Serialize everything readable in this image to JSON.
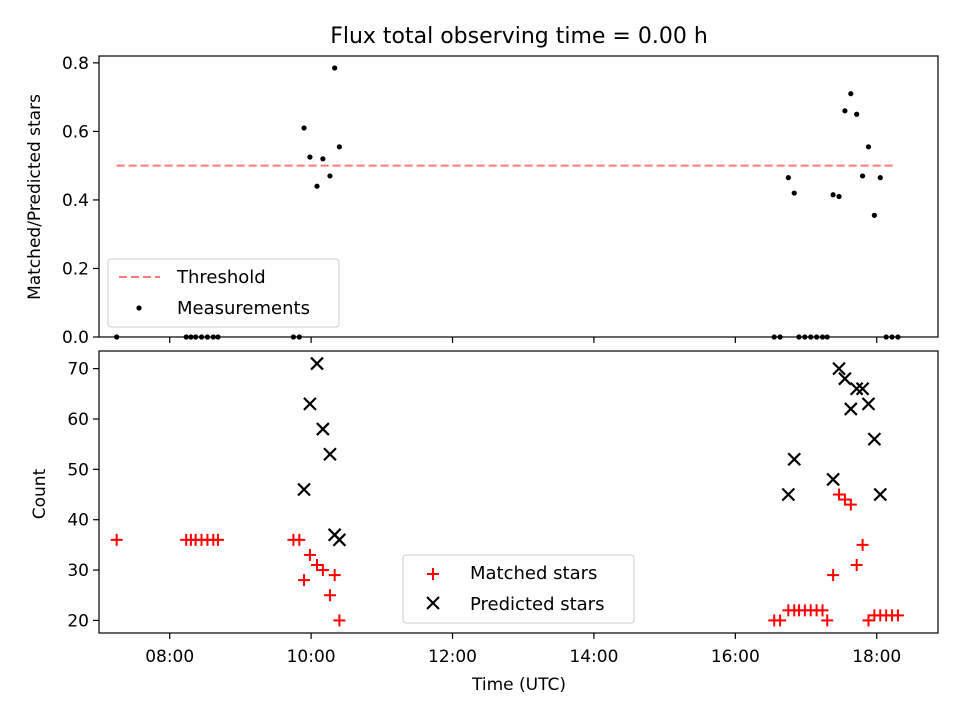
{
  "figure": {
    "title": "Flux total observing time = 0.00 h"
  },
  "chart_data": [
    {
      "type": "scatter",
      "ylabel": "Matched/Predicted stars",
      "xlabel": "",
      "xlim": [
        "07:00",
        "18:52"
      ],
      "ylim": [
        0,
        0.82
      ],
      "yticks": [
        0.0,
        0.2,
        0.4,
        0.6,
        0.8
      ],
      "ytick_labels": [
        "0.0",
        "0.2",
        "0.4",
        "0.6",
        "0.8"
      ],
      "xticks": [
        "08:00",
        "10:00",
        "12:00",
        "14:00",
        "16:00",
        "18:00"
      ],
      "grid": false,
      "legend_position": "lower-left",
      "threshold": {
        "name": "Threshold",
        "value": 0.5,
        "x_range": [
          "07:15",
          "18:15"
        ],
        "color": "#ff7777",
        "style": "dashed"
      },
      "series": [
        {
          "name": "Measurements",
          "marker": "dot",
          "color": "#000000",
          "x": [
            "07:15",
            "08:14",
            "08:18",
            "08:22",
            "08:27",
            "08:32",
            "08:37",
            "08:41",
            "09:45",
            "09:50",
            "09:54",
            "09:59",
            "10:05",
            "10:10",
            "10:16",
            "10:20",
            "10:24",
            "16:33",
            "16:38",
            "16:45",
            "16:50",
            "16:54",
            "16:59",
            "17:04",
            "17:09",
            "17:14",
            "17:18",
            "17:23",
            "17:28",
            "17:33",
            "17:38",
            "17:43",
            "17:48",
            "17:53",
            "17:58",
            "18:03",
            "18:08",
            "18:13",
            "18:18"
          ],
          "y": [
            0,
            0,
            0,
            0,
            0,
            0,
            0,
            0,
            0,
            0,
            0.61,
            0.525,
            0.44,
            0.52,
            0.47,
            0.785,
            0.555,
            0,
            0,
            0.465,
            0.42,
            0,
            0,
            0,
            0,
            0,
            0,
            0.415,
            0.41,
            0.66,
            0.71,
            0.65,
            0.47,
            0.555,
            0.355,
            0.465,
            0,
            0,
            0
          ]
        }
      ]
    },
    {
      "type": "scatter",
      "ylabel": "Count",
      "xlabel": "Time (UTC)",
      "xlim": [
        "07:00",
        "18:52"
      ],
      "ylim": [
        17.5,
        73.5
      ],
      "yticks": [
        20,
        30,
        40,
        50,
        60,
        70
      ],
      "ytick_labels": [
        "20",
        "30",
        "40",
        "50",
        "60",
        "70"
      ],
      "xticks": [
        "08:00",
        "10:00",
        "12:00",
        "14:00",
        "16:00",
        "18:00"
      ],
      "xtick_labels": [
        "08:00",
        "10:00",
        "12:00",
        "14:00",
        "16:00",
        "18:00"
      ],
      "grid": false,
      "legend_position": "lower-center",
      "series": [
        {
          "name": "Matched stars",
          "marker": "plus",
          "color": "#ff0000",
          "x": [
            "07:15",
            "08:14",
            "08:18",
            "08:22",
            "08:27",
            "08:32",
            "08:37",
            "08:41",
            "09:45",
            "09:50",
            "09:54",
            "09:59",
            "10:05",
            "10:10",
            "10:16",
            "10:20",
            "10:24",
            "16:33",
            "16:38",
            "16:45",
            "16:50",
            "16:54",
            "16:59",
            "17:04",
            "17:09",
            "17:14",
            "17:18",
            "17:23",
            "17:28",
            "17:33",
            "17:38",
            "17:43",
            "17:48",
            "17:53",
            "17:58",
            "18:03",
            "18:08",
            "18:13",
            "18:18"
          ],
          "y": [
            36,
            36,
            36,
            36,
            36,
            36,
            36,
            36,
            36,
            36,
            28,
            33,
            31,
            30,
            25,
            29,
            20,
            20,
            20,
            22,
            22,
            22,
            22,
            22,
            22,
            22,
            20,
            29,
            45,
            44,
            43,
            31,
            35,
            20,
            21,
            21,
            21,
            21,
            21
          ]
        },
        {
          "name": "Predicted stars",
          "marker": "x",
          "color": "#000000",
          "x": [
            "09:54",
            "09:59",
            "10:05",
            "10:10",
            "10:16",
            "10:20",
            "10:24",
            "16:45",
            "16:50",
            "17:23",
            "17:28",
            "17:33",
            "17:38",
            "17:43",
            "17:48",
            "17:53",
            "17:58",
            "18:03"
          ],
          "y": [
            46,
            63,
            71,
            58,
            53,
            37,
            36,
            45,
            52,
            48,
            70,
            68,
            62,
            66,
            66,
            63,
            56,
            45
          ]
        }
      ]
    }
  ]
}
